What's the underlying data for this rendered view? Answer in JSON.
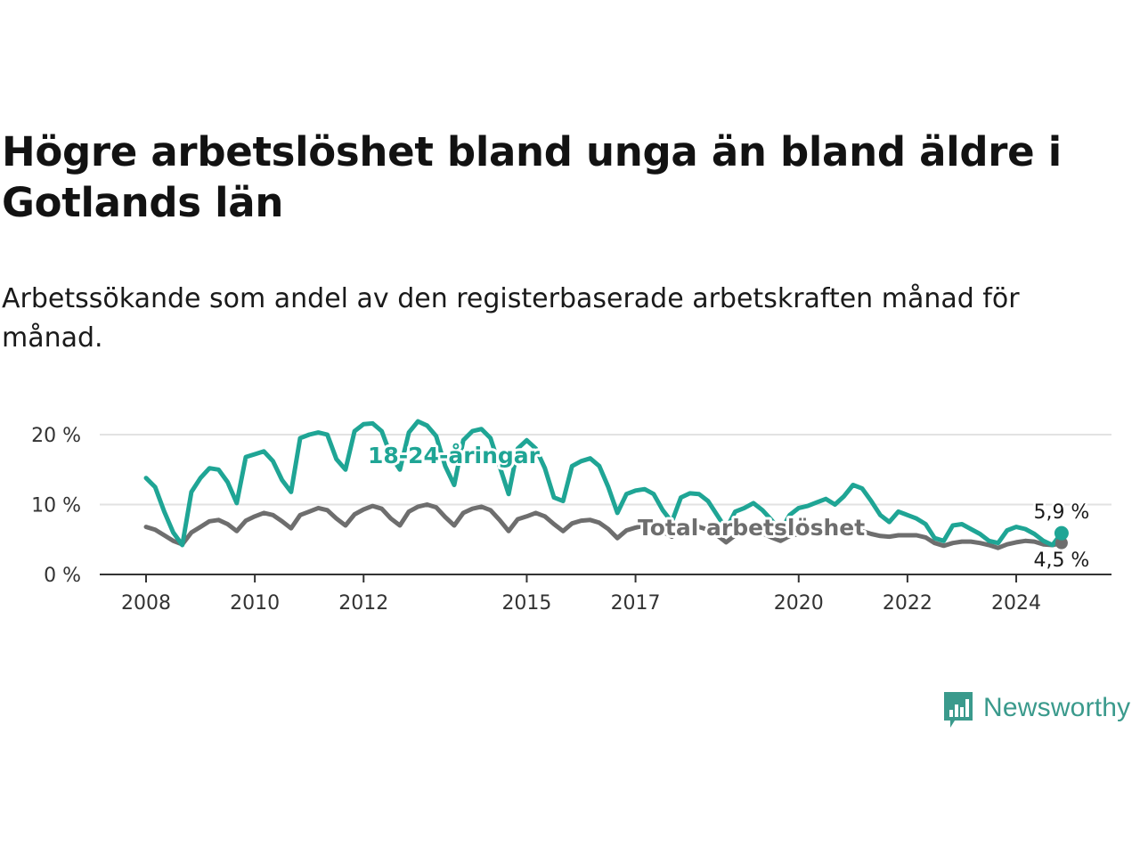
{
  "title": "Högre arbetslöshet bland unga än bland äldre i Gotlands län",
  "subtitle": "Arbetssökande som andel av den registerbaserade arbetskraften månad för månad.",
  "brand": {
    "name": "Newsworthy",
    "color": "#3a9a8c"
  },
  "chart_data": {
    "type": "line",
    "title": "Högre arbetslöshet bland unga än bland äldre i Gotlands län",
    "subtitle": "Arbetssökande som andel av den registerbaserade arbetskraften månad för månad.",
    "xlabel": "",
    "ylabel": "",
    "y_ticks": [
      {
        "value": 0,
        "label": "0 %"
      },
      {
        "value": 10,
        "label": "10 %"
      },
      {
        "value": 20,
        "label": "20 %"
      }
    ],
    "ylim": [
      0,
      20
    ],
    "x_ticks": [
      "2008",
      "2010",
      "2012",
      "2015",
      "2017",
      "2020",
      "2022",
      "2024"
    ],
    "xlim": [
      "2008-01",
      "2024-11"
    ],
    "grid": "horizontal",
    "legend": "inline labels",
    "series": [
      {
        "name": "18-24-åringar",
        "color": "#1fa595",
        "label_on_chart": "18-24-åringar",
        "end_value_label": "5,9 %",
        "x": [
          "2008-01",
          "2008-03",
          "2008-05",
          "2008-07",
          "2008-09",
          "2008-11",
          "2009-01",
          "2009-03",
          "2009-05",
          "2009-07",
          "2009-09",
          "2009-11",
          "2010-01",
          "2010-03",
          "2010-05",
          "2010-07",
          "2010-09",
          "2010-11",
          "2011-01",
          "2011-03",
          "2011-05",
          "2011-07",
          "2011-09",
          "2011-11",
          "2012-01",
          "2012-03",
          "2012-05",
          "2012-07",
          "2012-09",
          "2012-11",
          "2013-01",
          "2013-03",
          "2013-05",
          "2013-07",
          "2013-09",
          "2013-11",
          "2014-01",
          "2014-03",
          "2014-05",
          "2014-07",
          "2014-09",
          "2014-11",
          "2015-01",
          "2015-03",
          "2015-05",
          "2015-07",
          "2015-09",
          "2015-11",
          "2016-01",
          "2016-03",
          "2016-05",
          "2016-07",
          "2016-09",
          "2016-11",
          "2017-01",
          "2017-03",
          "2017-05",
          "2017-07",
          "2017-09",
          "2017-11",
          "2018-01",
          "2018-03",
          "2018-05",
          "2018-07",
          "2018-09",
          "2018-11",
          "2019-01",
          "2019-03",
          "2019-05",
          "2019-07",
          "2019-09",
          "2019-11",
          "2020-01",
          "2020-03",
          "2020-05",
          "2020-07",
          "2020-09",
          "2020-11",
          "2021-01",
          "2021-03",
          "2021-05",
          "2021-07",
          "2021-09",
          "2021-11",
          "2022-01",
          "2022-03",
          "2022-05",
          "2022-07",
          "2022-09",
          "2022-11",
          "2023-01",
          "2023-03",
          "2023-05",
          "2023-07",
          "2023-09",
          "2023-11",
          "2024-01",
          "2024-03",
          "2024-05",
          "2024-07",
          "2024-09",
          "2024-11"
        ],
        "values": [
          13.8,
          12.5,
          9.0,
          6.0,
          4.2,
          11.8,
          13.8,
          15.2,
          15.0,
          13.2,
          10.2,
          16.8,
          17.2,
          17.6,
          16.2,
          13.5,
          11.8,
          19.5,
          20.0,
          20.3,
          20.0,
          16.5,
          15.0,
          20.5,
          21.5,
          21.6,
          20.5,
          17.0,
          15.0,
          20.3,
          21.9,
          21.3,
          19.8,
          15.5,
          12.8,
          19.2,
          20.5,
          20.8,
          19.5,
          15.5,
          11.5,
          18.0,
          19.2,
          18.0,
          15.2,
          11.0,
          10.5,
          15.5,
          16.2,
          16.6,
          15.5,
          12.5,
          8.8,
          11.5,
          12.0,
          12.2,
          11.5,
          9.2,
          7.5,
          11.0,
          11.6,
          11.5,
          10.5,
          8.5,
          6.5,
          9.0,
          9.5,
          10.2,
          9.2,
          7.8,
          6.2,
          8.5,
          9.5,
          9.8,
          10.3,
          10.8,
          10.0,
          11.2,
          12.8,
          12.3,
          10.5,
          8.5,
          7.5,
          9.0,
          8.5,
          8.0,
          7.2,
          5.2,
          4.8,
          7.0,
          7.2,
          6.5,
          5.8,
          4.8,
          4.5,
          6.3,
          6.8,
          6.5,
          5.8,
          4.8,
          4.2,
          5.9
        ]
      },
      {
        "name": "Total arbetslöshet",
        "color": "#6e6e6e",
        "label_on_chart": "Total arbetslöshet",
        "end_value_label": "4,5 %",
        "x": [
          "2008-01",
          "2008-03",
          "2008-05",
          "2008-07",
          "2008-09",
          "2008-11",
          "2009-01",
          "2009-03",
          "2009-05",
          "2009-07",
          "2009-09",
          "2009-11",
          "2010-01",
          "2010-03",
          "2010-05",
          "2010-07",
          "2010-09",
          "2010-11",
          "2011-01",
          "2011-03",
          "2011-05",
          "2011-07",
          "2011-09",
          "2011-11",
          "2012-01",
          "2012-03",
          "2012-05",
          "2012-07",
          "2012-09",
          "2012-11",
          "2013-01",
          "2013-03",
          "2013-05",
          "2013-07",
          "2013-09",
          "2013-11",
          "2014-01",
          "2014-03",
          "2014-05",
          "2014-07",
          "2014-09",
          "2014-11",
          "2015-01",
          "2015-03",
          "2015-05",
          "2015-07",
          "2015-09",
          "2015-11",
          "2016-01",
          "2016-03",
          "2016-05",
          "2016-07",
          "2016-09",
          "2016-11",
          "2017-01",
          "2017-03",
          "2017-05",
          "2017-07",
          "2017-09",
          "2017-11",
          "2018-01",
          "2018-03",
          "2018-05",
          "2018-07",
          "2018-09",
          "2018-11",
          "2019-01",
          "2019-03",
          "2019-05",
          "2019-07",
          "2019-09",
          "2019-11",
          "2020-01",
          "2020-03",
          "2020-05",
          "2020-07",
          "2020-09",
          "2020-11",
          "2021-01",
          "2021-03",
          "2021-05",
          "2021-07",
          "2021-09",
          "2021-11",
          "2022-01",
          "2022-03",
          "2022-05",
          "2022-07",
          "2022-09",
          "2022-11",
          "2023-01",
          "2023-03",
          "2023-05",
          "2023-07",
          "2023-09",
          "2023-11",
          "2024-01",
          "2024-03",
          "2024-05",
          "2024-07",
          "2024-09",
          "2024-11"
        ],
        "values": [
          6.8,
          6.4,
          5.6,
          4.8,
          4.3,
          6.0,
          6.8,
          7.6,
          7.8,
          7.2,
          6.2,
          7.7,
          8.3,
          8.8,
          8.5,
          7.6,
          6.6,
          8.5,
          9.0,
          9.5,
          9.2,
          8.0,
          7.0,
          8.6,
          9.3,
          9.8,
          9.4,
          8.0,
          7.0,
          9.0,
          9.7,
          10.0,
          9.6,
          8.2,
          7.0,
          8.8,
          9.4,
          9.7,
          9.2,
          7.8,
          6.2,
          7.9,
          8.3,
          8.8,
          8.3,
          7.2,
          6.2,
          7.3,
          7.7,
          7.8,
          7.4,
          6.5,
          5.2,
          6.3,
          6.7,
          7.0,
          6.9,
          6.1,
          5.4,
          6.3,
          6.6,
          6.8,
          6.4,
          5.6,
          4.6,
          5.6,
          5.9,
          6.2,
          5.9,
          5.3,
          4.8,
          5.5,
          5.8,
          6.0,
          6.2,
          6.3,
          5.9,
          5.9,
          6.2,
          6.2,
          5.8,
          5.5,
          5.4,
          5.6,
          5.6,
          5.6,
          5.3,
          4.5,
          4.1,
          4.5,
          4.7,
          4.7,
          4.5,
          4.2,
          3.8,
          4.3,
          4.6,
          4.8,
          4.7,
          4.3,
          4.2,
          4.5
        ]
      }
    ]
  }
}
